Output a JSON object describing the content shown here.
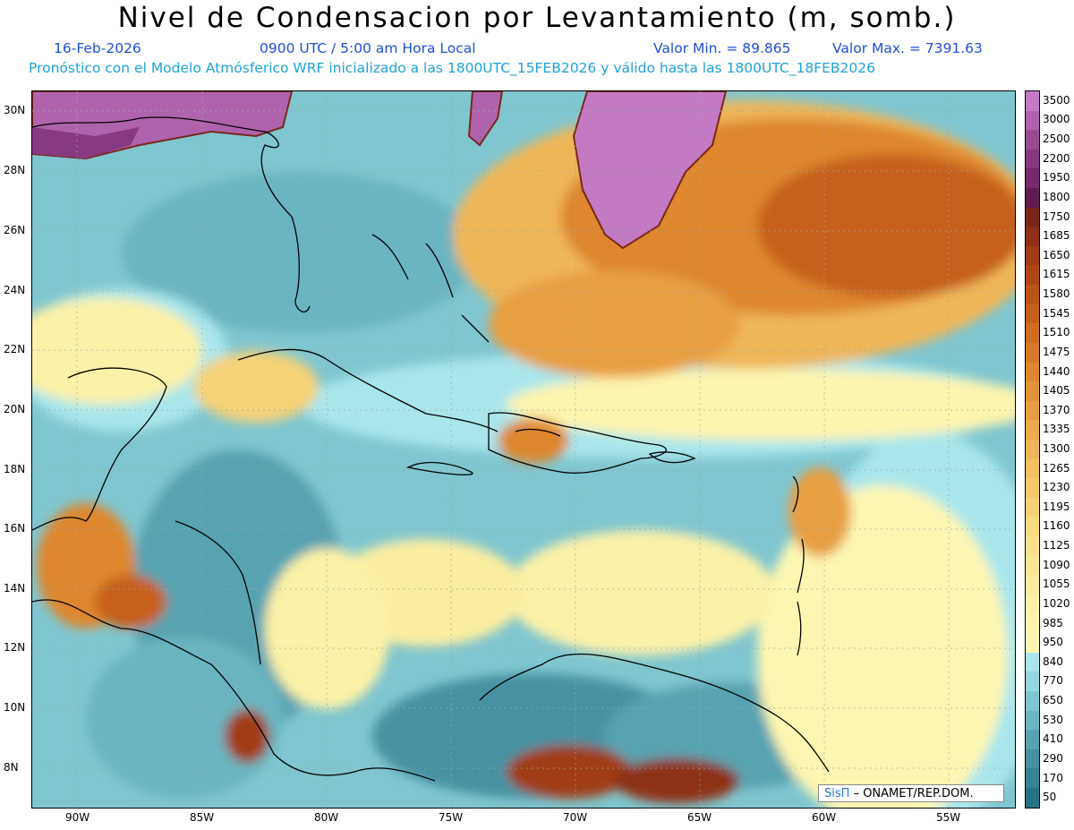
{
  "title": "Nivel de Condensacion por Levantamiento (m, somb.)",
  "date": "16-Feb-2026",
  "time": "0900 UTC / 5:00 am Hora Local",
  "value_min": "Valor Min. = 89.865",
  "value_max": "Valor Max. = 7391.63",
  "forecast_line": "Pronóstico con el Modelo Atmósferico WRF inicializado a las 1800UTC_15FEB2026 y válido hasta las  1800UTC_18FEB2026",
  "credit": {
    "brand": "SisΠ",
    "org": "– ONAMET/REP.DOM."
  },
  "lat_labels": [
    "30N",
    "28N",
    "26N",
    "24N",
    "22N",
    "20N",
    "18N",
    "16N",
    "14N",
    "12N",
    "10N",
    "8N"
  ],
  "lon_labels": [
    "90W",
    "85W",
    "80W",
    "75W",
    "70W",
    "65W",
    "60W",
    "55W"
  ],
  "colorbar": [
    {
      "label": "3500",
      "color": "#c47ac2"
    },
    {
      "label": "3000",
      "color": "#b063ad"
    },
    {
      "label": "2500",
      "color": "#9a4a93"
    },
    {
      "label": "2200",
      "color": "#883a80"
    },
    {
      "label": "1950",
      "color": "#742a6c"
    },
    {
      "label": "1800",
      "color": "#5e1c4f"
    },
    {
      "label": "1750",
      "color": "#7a2619"
    },
    {
      "label": "1685",
      "color": "#8e3117"
    },
    {
      "label": "1650",
      "color": "#a03c14"
    },
    {
      "label": "1615",
      "color": "#b04713"
    },
    {
      "label": "1580",
      "color": "#bd5417"
    },
    {
      "label": "1545",
      "color": "#c6611c"
    },
    {
      "label": "1510",
      "color": "#cf6d22"
    },
    {
      "label": "1475",
      "color": "#d77a28"
    },
    {
      "label": "1440",
      "color": "#de872f"
    },
    {
      "label": "1405",
      "color": "#e39338"
    },
    {
      "label": "1370",
      "color": "#e89f42"
    },
    {
      "label": "1335",
      "color": "#ecab4d"
    },
    {
      "label": "1300",
      "color": "#efb658"
    },
    {
      "label": "1265",
      "color": "#f2c062"
    },
    {
      "label": "1230",
      "color": "#f4c96c"
    },
    {
      "label": "1195",
      "color": "#f6d277"
    },
    {
      "label": "1160",
      "color": "#f8da82"
    },
    {
      "label": "1125",
      "color": "#f9e18c"
    },
    {
      "label": "1090",
      "color": "#fae796"
    },
    {
      "label": "1055",
      "color": "#fbeda0"
    },
    {
      "label": "1020",
      "color": "#fcf1a8"
    },
    {
      "label": "985",
      "color": "#fdf4ae"
    },
    {
      "label": "950",
      "color": "#fdf6b3"
    },
    {
      "label": "840",
      "color": "#a9e6ec"
    },
    {
      "label": "770",
      "color": "#95d7df"
    },
    {
      "label": "650",
      "color": "#80c6d0"
    },
    {
      "label": "530",
      "color": "#6bb5c1"
    },
    {
      "label": "410",
      "color": "#58a3b1"
    },
    {
      "label": "290",
      "color": "#4692a2"
    },
    {
      "label": "170",
      "color": "#348293"
    },
    {
      "label": "50",
      "color": "#267285"
    }
  ]
}
